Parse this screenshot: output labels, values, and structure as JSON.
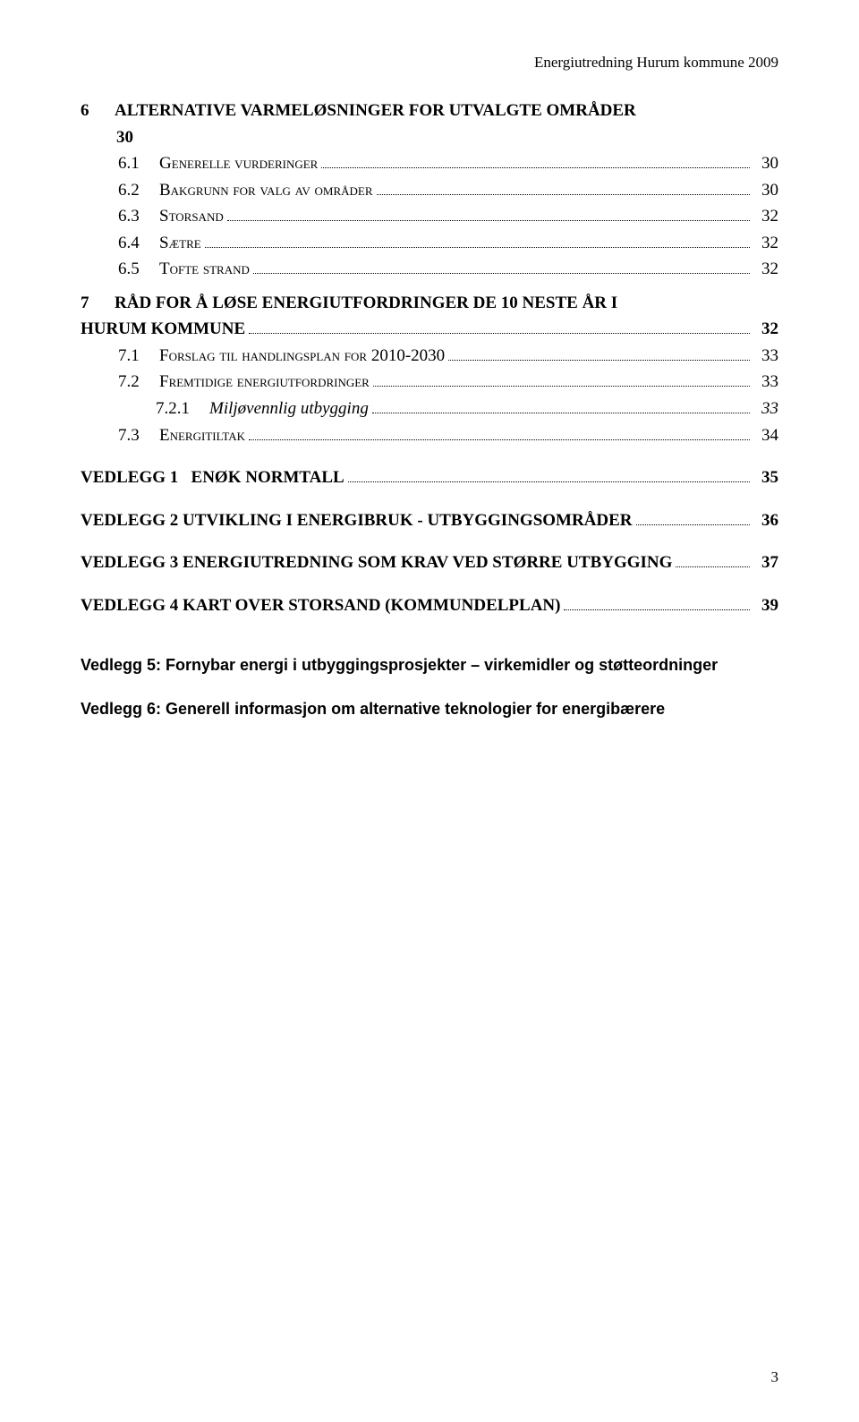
{
  "header": {
    "text": "Energiutredning Hurum kommune 2009"
  },
  "toc": {
    "ch6": {
      "num": "6",
      "title": "ALTERNATIVE VARMELØSNINGER FOR UTVALGTE OMRÅDER",
      "wrap": "30",
      "items": [
        {
          "num": "6.1",
          "label": "Generelle vurderinger",
          "page": "30"
        },
        {
          "num": "6.2",
          "label": "Bakgrunn for valg av områder",
          "page": "30"
        },
        {
          "num": "6.3",
          "label": "Storsand",
          "page": "32"
        },
        {
          "num": "6.4",
          "label": "Sætre",
          "page": "32"
        },
        {
          "num": "6.5",
          "label": "Tofte strand",
          "page": "32"
        }
      ]
    },
    "ch7": {
      "num": "7",
      "title_line1": "RÅD FOR Å LØSE ENERGIUTFORDRINGER DE 10 NESTE ÅR I",
      "title_line2": "HURUM KOMMUNE",
      "page": "32",
      "items": [
        {
          "num": "7.1",
          "label": "Forslag til handlingsplan for 2010-2030",
          "page": "33"
        },
        {
          "num": "7.2",
          "label": "Fremtidige energiutfordringer",
          "page": "33"
        }
      ],
      "sub721": {
        "num": "7.2.1",
        "label": "Miljøvennlig utbygging",
        "page": "33"
      },
      "item73": {
        "num": "7.3",
        "label": "Energitiltak",
        "page": "34"
      }
    },
    "vedlegg": [
      {
        "label": "VEDLEGG 1   ENØK NORMTALL",
        "page": "35"
      },
      {
        "label": "VEDLEGG 2 UTVIKLING I ENERGIBRUK - UTBYGGINGSOMRÅDER",
        "page": "36"
      },
      {
        "label": "VEDLEGG 3 ENERGIUTREDNING SOM KRAV VED STØRRE UTBYGGING",
        "page": "37"
      },
      {
        "label": "VEDLEGG 4 KART OVER STORSAND (KOMMUNDELPLAN)",
        "page": "39"
      }
    ]
  },
  "bottom": {
    "v5": "Vedlegg 5: Fornybar energi i utbyggingsprosjekter – virkemidler og støtteordninger",
    "v6": "Vedlegg 6: Generell informasjon om alternative teknologier for energibærere"
  },
  "footer": {
    "page_number": "3"
  }
}
